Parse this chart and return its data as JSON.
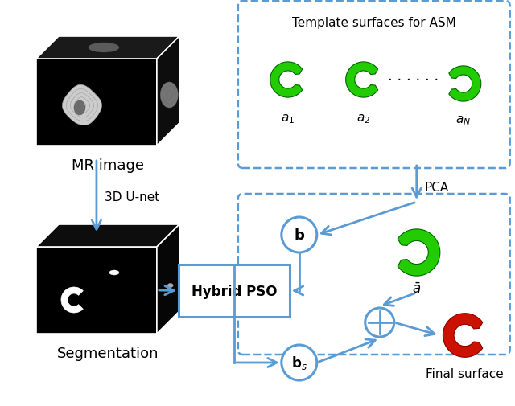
{
  "arrow_color": "#5B9BD5",
  "dashed_color": "#5B9BD5",
  "green_fill": "#22CC00",
  "green_edge": "#006600",
  "red_fill": "#CC1100",
  "red_edge": "#880000",
  "bg": "#FFFFFF",
  "text_mr": "MR image",
  "text_seg": "Segmentation",
  "text_unet": "3D U-net",
  "text_pca": "PCA",
  "text_pso": "Hybrid PSO",
  "text_final": "Final surface",
  "text_template": "Template surfaces for ASM",
  "label_a1": "$a_1$",
  "label_a2": "$a_2$",
  "label_aN": "$a_N$",
  "label_abar": "$\\bar{a}$",
  "label_b": "$\\mathbf{b}$",
  "label_bs": "$\\mathbf{b}_s$",
  "dots": "· · · · · ·",
  "fig_w": 6.4,
  "fig_h": 5.06
}
